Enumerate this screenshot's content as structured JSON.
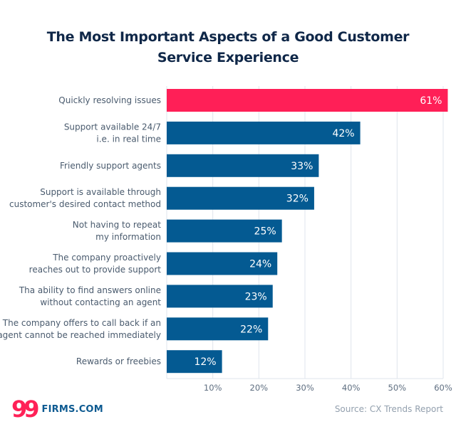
{
  "chart_data": {
    "type": "bar",
    "orientation": "horizontal",
    "title": "The Most Important Aspects of a Good Customer Service Experience",
    "title_lines": [
      "The Most Important Aspects of a Good Customer",
      "Service Experience"
    ],
    "xlabel": "",
    "ylabel": "",
    "xlim": [
      0,
      60
    ],
    "grid": true,
    "tick_values": [
      10,
      20,
      30,
      40,
      50,
      60
    ],
    "tick_labels": [
      "10%",
      "20%",
      "30%",
      "40%",
      "50%",
      "60%"
    ],
    "categories": [
      [
        "Quickly resolving issues"
      ],
      [
        "Support available 24/7",
        "i.e. in real time"
      ],
      [
        "Friendly support agents"
      ],
      [
        "Support is available through",
        "customer's desired contact method"
      ],
      [
        "Not having to repeat",
        "my information"
      ],
      [
        "The company proactively",
        "reaches out to provide support"
      ],
      [
        "Tha ability to find answers online",
        "without contacting an agent"
      ],
      [
        "The company offers to call back if an",
        "agent cannot be reached immediately"
      ],
      [
        "Rewards or freebies"
      ]
    ],
    "values": [
      61,
      42,
      33,
      32,
      25,
      24,
      23,
      22,
      12
    ],
    "value_labels": [
      "61%",
      "42%",
      "33%",
      "32%",
      "25%",
      "24%",
      "23%",
      "22%",
      "12%"
    ],
    "highlight_index": 0,
    "colors": {
      "highlight": "#ff1f57",
      "default": "#045a92",
      "grid": "#dfe5ec"
    }
  },
  "footer": {
    "logo_number": "99",
    "logo_text": "FIRMS.COM",
    "source": "Source: CX Trends Report"
  },
  "colors": {
    "title": "#0f2748",
    "brand_pink": "#ff2157",
    "brand_blue": "#0d5a91"
  }
}
